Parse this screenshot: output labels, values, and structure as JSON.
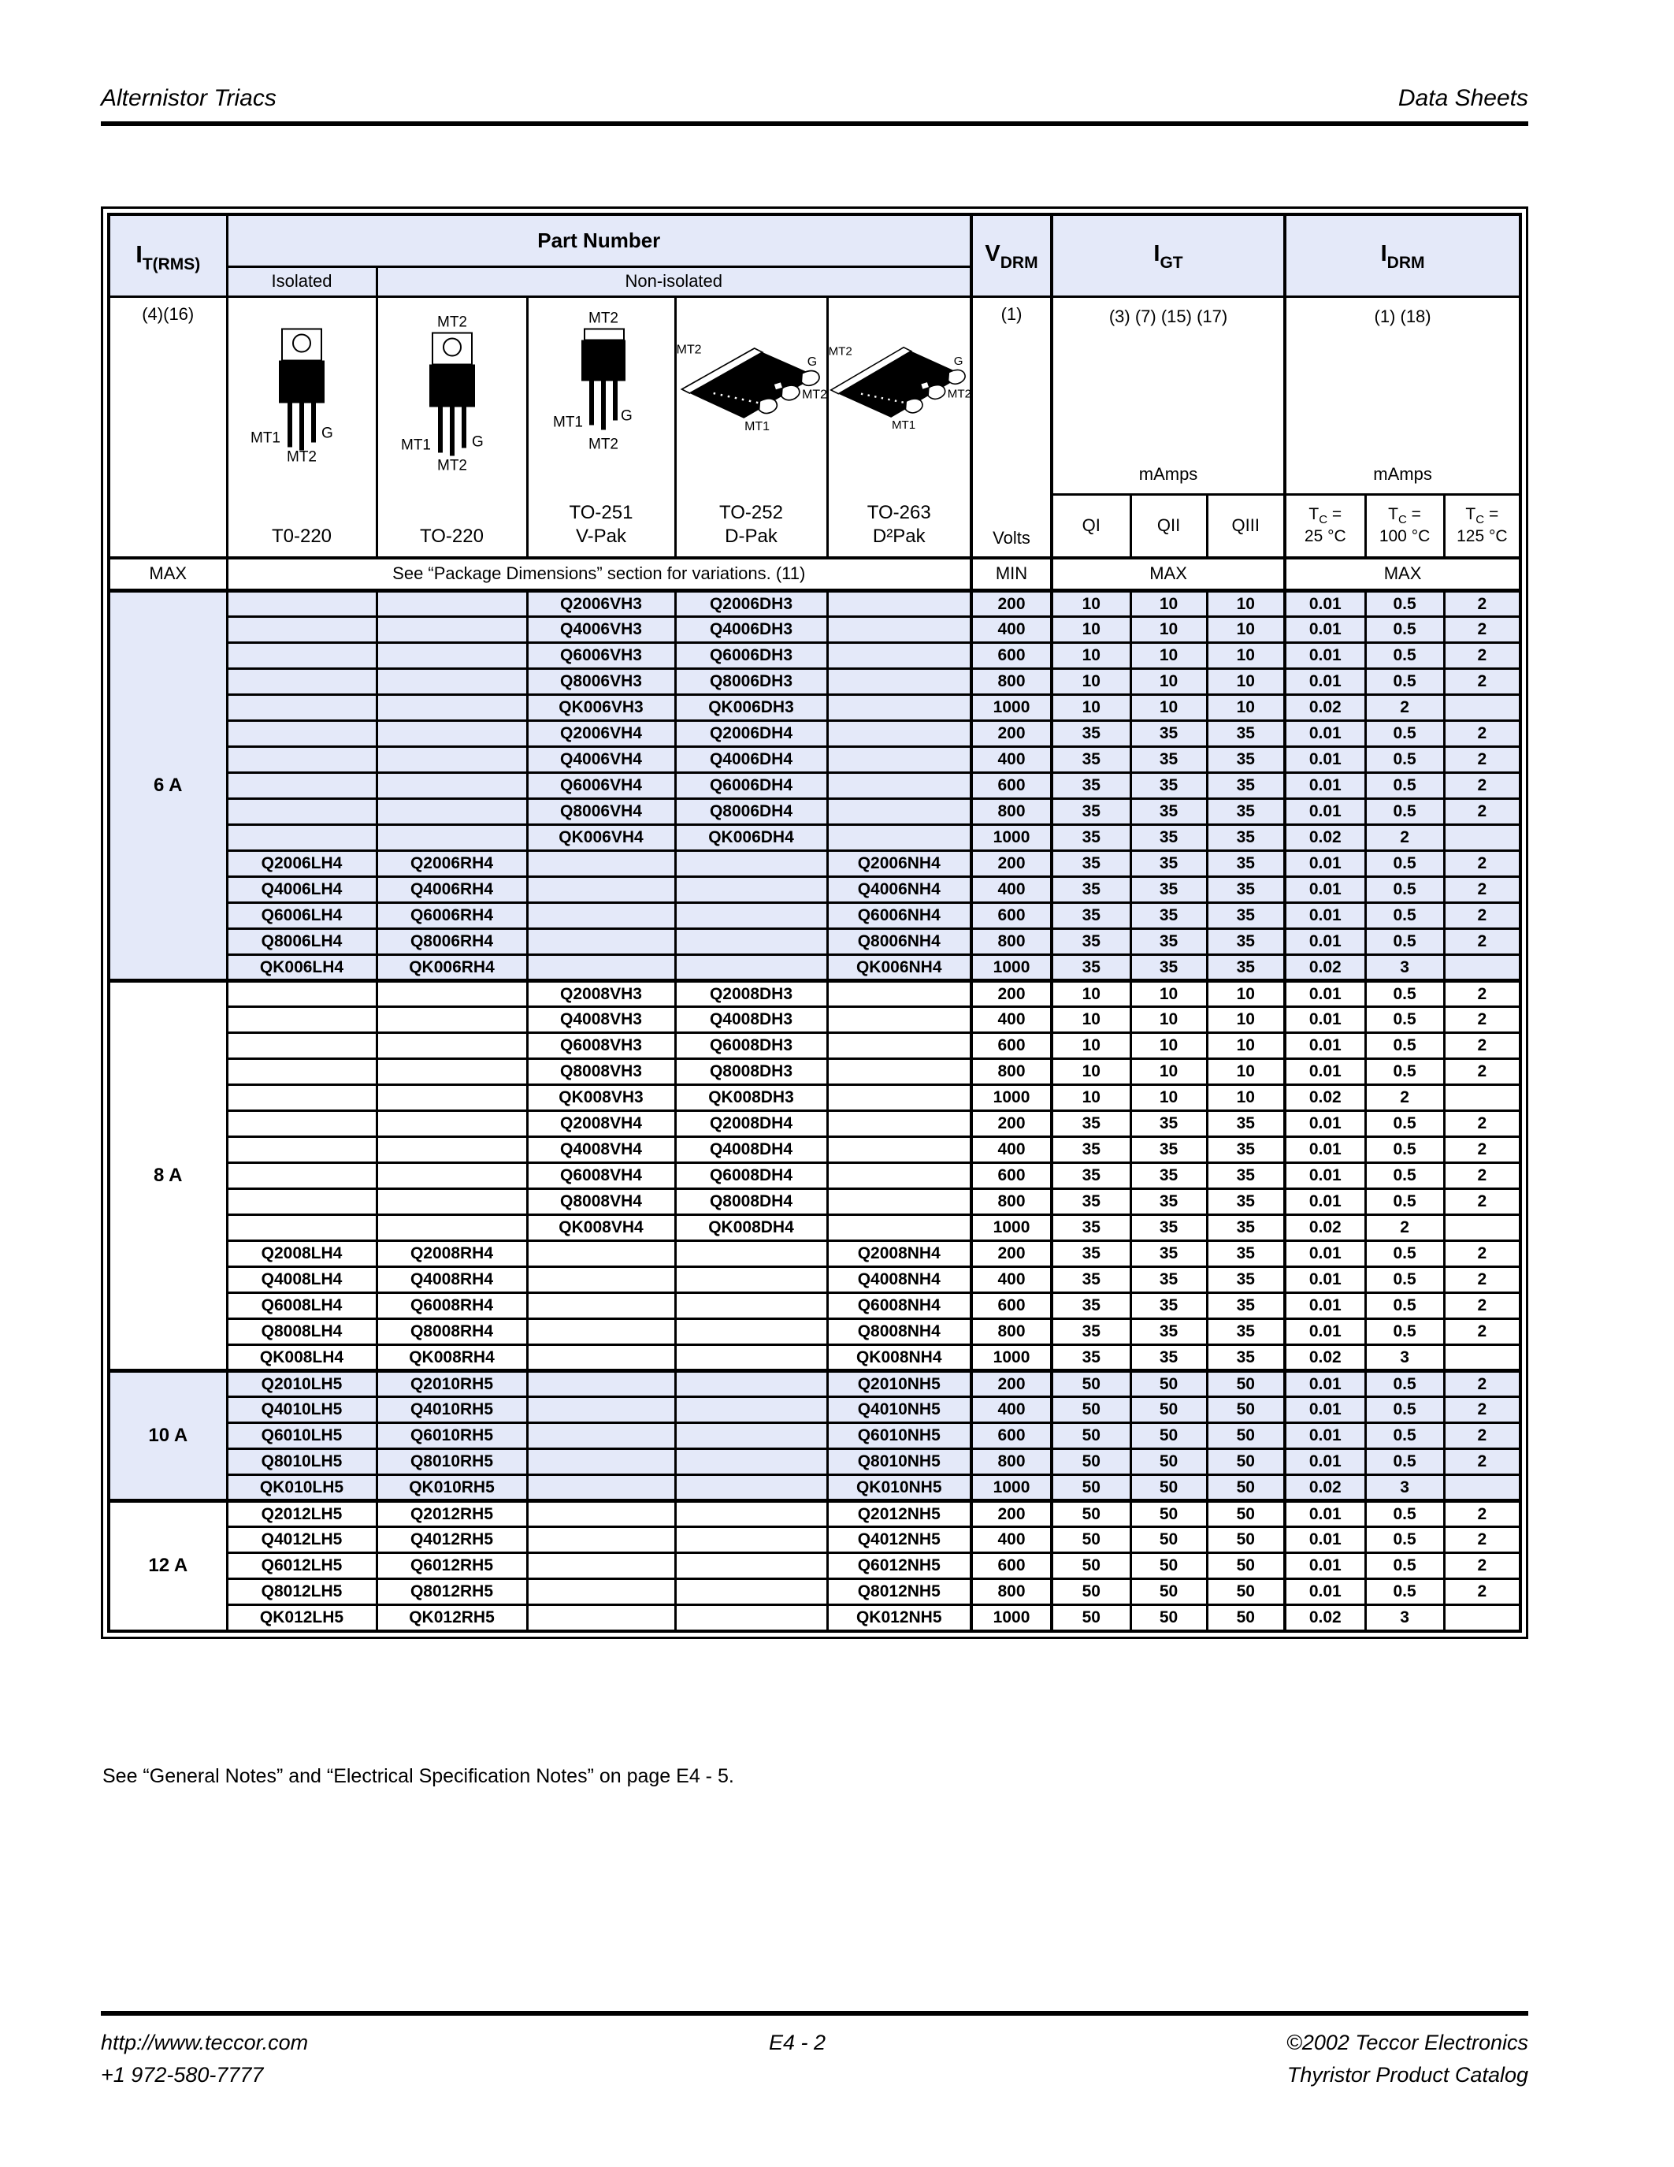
{
  "colors": {
    "section_shade": "#e4e9f9",
    "border": "#000000"
  },
  "page": {
    "header_left": "Alternistor Triacs",
    "header_right": "Data Sheets",
    "note": "See “General Notes”  and “Electrical Specification Notes” on page E4 - 5.",
    "footer": {
      "url": "http://www.teccor.com",
      "phone": "+1 972-580-7777",
      "page_number": "E4 - 2",
      "copyright": "©2002 Teccor Electronics",
      "catalog": "Thyristor Product Catalog"
    }
  },
  "table": {
    "col_headers": {
      "it_base": "I",
      "it_sub": "T(RMS)",
      "it_notes": "(4)(16)",
      "part_number": "Part Number",
      "isolated": "Isolated",
      "non_isolated": "Non-isolated",
      "vdrm_base": "V",
      "vdrm_sub": "DRM",
      "vdrm_note": "(1)",
      "volts": "Volts",
      "igt_base": "I",
      "igt_sub": "GT",
      "igt_notes": "(3) (7) (15) (17)",
      "igt_unit": "mAmps",
      "idrm_base": "I",
      "idrm_sub": "DRM",
      "idrm_notes": "(1) (18)",
      "idrm_unit": "mAmps",
      "q1": "QI",
      "q2": "QII",
      "q3": "QIII",
      "tc_base": "T",
      "tc_sub": "C",
      "tc_eq": "=",
      "tc_temps": [
        "25 °C",
        "100 °C",
        "125 °C"
      ]
    },
    "packages": [
      {
        "name": "T0-220",
        "sub": "",
        "pins": {
          "bl": "MT1",
          "bc": "MT2",
          "br": "G"
        }
      },
      {
        "name": "TO-220",
        "sub": "",
        "pins": {
          "top": "MT2",
          "bl": "MT1",
          "bc": "MT2",
          "br": "G"
        }
      },
      {
        "name": "TO-251",
        "sub": "V-Pak",
        "pins": {
          "top": "MT2",
          "bl": "MT1",
          "bc": "MT2",
          "br": "G"
        }
      },
      {
        "name": "TO-252",
        "sub": "D-Pak",
        "pins": {
          "tl": "MT2",
          "r1": "G",
          "r2": "MT2",
          "b": "MT1"
        }
      },
      {
        "name": "TO-263",
        "sub": "D²Pak",
        "pins": {
          "tl": "MT2",
          "r1": "G",
          "r2": "MT2",
          "b": "MT1"
        }
      }
    ],
    "max_row": {
      "label": "MAX",
      "span": "See “Package Dimensions” section for variations. (11)",
      "min": "MIN",
      "igt_max": "MAX",
      "idrm_max": "MAX"
    },
    "row_columns": [
      "isolated-to220",
      "to220",
      "vpak",
      "dpak",
      "d2pak",
      "volts",
      "igt-qi",
      "igt-qii",
      "igt-qiii",
      "idrm-tc25",
      "idrm-tc100",
      "idrm-tc125"
    ],
    "sections": [
      {
        "label": "6 A",
        "shaded": true,
        "rows": [
          [
            "",
            "",
            "Q2006VH3",
            "Q2006DH3",
            "",
            "200",
            "10",
            "10",
            "10",
            "0.01",
            "0.5",
            "2"
          ],
          [
            "",
            "",
            "Q4006VH3",
            "Q4006DH3",
            "",
            "400",
            "10",
            "10",
            "10",
            "0.01",
            "0.5",
            "2"
          ],
          [
            "",
            "",
            "Q6006VH3",
            "Q6006DH3",
            "",
            "600",
            "10",
            "10",
            "10",
            "0.01",
            "0.5",
            "2"
          ],
          [
            "",
            "",
            "Q8006VH3",
            "Q8006DH3",
            "",
            "800",
            "10",
            "10",
            "10",
            "0.01",
            "0.5",
            "2"
          ],
          [
            "",
            "",
            "QK006VH3",
            "QK006DH3",
            "",
            "1000",
            "10",
            "10",
            "10",
            "0.02",
            "2",
            ""
          ],
          [
            "",
            "",
            "Q2006VH4",
            "Q2006DH4",
            "",
            "200",
            "35",
            "35",
            "35",
            "0.01",
            "0.5",
            "2"
          ],
          [
            "",
            "",
            "Q4006VH4",
            "Q4006DH4",
            "",
            "400",
            "35",
            "35",
            "35",
            "0.01",
            "0.5",
            "2"
          ],
          [
            "",
            "",
            "Q6006VH4",
            "Q6006DH4",
            "",
            "600",
            "35",
            "35",
            "35",
            "0.01",
            "0.5",
            "2"
          ],
          [
            "",
            "",
            "Q8006VH4",
            "Q8006DH4",
            "",
            "800",
            "35",
            "35",
            "35",
            "0.01",
            "0.5",
            "2"
          ],
          [
            "",
            "",
            "QK006VH4",
            "QK006DH4",
            "",
            "1000",
            "35",
            "35",
            "35",
            "0.02",
            "2",
            ""
          ],
          [
            "Q2006LH4",
            "Q2006RH4",
            "",
            "",
            "Q2006NH4",
            "200",
            "35",
            "35",
            "35",
            "0.01",
            "0.5",
            "2"
          ],
          [
            "Q4006LH4",
            "Q4006RH4",
            "",
            "",
            "Q4006NH4",
            "400",
            "35",
            "35",
            "35",
            "0.01",
            "0.5",
            "2"
          ],
          [
            "Q6006LH4",
            "Q6006RH4",
            "",
            "",
            "Q6006NH4",
            "600",
            "35",
            "35",
            "35",
            "0.01",
            "0.5",
            "2"
          ],
          [
            "Q8006LH4",
            "Q8006RH4",
            "",
            "",
            "Q8006NH4",
            "800",
            "35",
            "35",
            "35",
            "0.01",
            "0.5",
            "2"
          ],
          [
            "QK006LH4",
            "QK006RH4",
            "",
            "",
            "QK006NH4",
            "1000",
            "35",
            "35",
            "35",
            "0.02",
            "3",
            ""
          ]
        ]
      },
      {
        "label": "8 A",
        "shaded": false,
        "rows": [
          [
            "",
            "",
            "Q2008VH3",
            "Q2008DH3",
            "",
            "200",
            "10",
            "10",
            "10",
            "0.01",
            "0.5",
            "2"
          ],
          [
            "",
            "",
            "Q4008VH3",
            "Q4008DH3",
            "",
            "400",
            "10",
            "10",
            "10",
            "0.01",
            "0.5",
            "2"
          ],
          [
            "",
            "",
            "Q6008VH3",
            "Q6008DH3",
            "",
            "600",
            "10",
            "10",
            "10",
            "0.01",
            "0.5",
            "2"
          ],
          [
            "",
            "",
            "Q8008VH3",
            "Q8008DH3",
            "",
            "800",
            "10",
            "10",
            "10",
            "0.01",
            "0.5",
            "2"
          ],
          [
            "",
            "",
            "QK008VH3",
            "QK008DH3",
            "",
            "1000",
            "10",
            "10",
            "10",
            "0.02",
            "2",
            ""
          ],
          [
            "",
            "",
            "Q2008VH4",
            "Q2008DH4",
            "",
            "200",
            "35",
            "35",
            "35",
            "0.01",
            "0.5",
            "2"
          ],
          [
            "",
            "",
            "Q4008VH4",
            "Q4008DH4",
            "",
            "400",
            "35",
            "35",
            "35",
            "0.01",
            "0.5",
            "2"
          ],
          [
            "",
            "",
            "Q6008VH4",
            "Q6008DH4",
            "",
            "600",
            "35",
            "35",
            "35",
            "0.01",
            "0.5",
            "2"
          ],
          [
            "",
            "",
            "Q8008VH4",
            "Q8008DH4",
            "",
            "800",
            "35",
            "35",
            "35",
            "0.01",
            "0.5",
            "2"
          ],
          [
            "",
            "",
            "QK008VH4",
            "QK008DH4",
            "",
            "1000",
            "35",
            "35",
            "35",
            "0.02",
            "2",
            ""
          ],
          [
            "Q2008LH4",
            "Q2008RH4",
            "",
            "",
            "Q2008NH4",
            "200",
            "35",
            "35",
            "35",
            "0.01",
            "0.5",
            "2"
          ],
          [
            "Q4008LH4",
            "Q4008RH4",
            "",
            "",
            "Q4008NH4",
            "400",
            "35",
            "35",
            "35",
            "0.01",
            "0.5",
            "2"
          ],
          [
            "Q6008LH4",
            "Q6008RH4",
            "",
            "",
            "Q6008NH4",
            "600",
            "35",
            "35",
            "35",
            "0.01",
            "0.5",
            "2"
          ],
          [
            "Q8008LH4",
            "Q8008RH4",
            "",
            "",
            "Q8008NH4",
            "800",
            "35",
            "35",
            "35",
            "0.01",
            "0.5",
            "2"
          ],
          [
            "QK008LH4",
            "QK008RH4",
            "",
            "",
            "QK008NH4",
            "1000",
            "35",
            "35",
            "35",
            "0.02",
            "3",
            ""
          ]
        ]
      },
      {
        "label": "10 A",
        "shaded": true,
        "rows": [
          [
            "Q2010LH5",
            "Q2010RH5",
            "",
            "",
            "Q2010NH5",
            "200",
            "50",
            "50",
            "50",
            "0.01",
            "0.5",
            "2"
          ],
          [
            "Q4010LH5",
            "Q4010RH5",
            "",
            "",
            "Q4010NH5",
            "400",
            "50",
            "50",
            "50",
            "0.01",
            "0.5",
            "2"
          ],
          [
            "Q6010LH5",
            "Q6010RH5",
            "",
            "",
            "Q6010NH5",
            "600",
            "50",
            "50",
            "50",
            "0.01",
            "0.5",
            "2"
          ],
          [
            "Q8010LH5",
            "Q8010RH5",
            "",
            "",
            "Q8010NH5",
            "800",
            "50",
            "50",
            "50",
            "0.01",
            "0.5",
            "2"
          ],
          [
            "QK010LH5",
            "QK010RH5",
            "",
            "",
            "QK010NH5",
            "1000",
            "50",
            "50",
            "50",
            "0.02",
            "3",
            ""
          ]
        ]
      },
      {
        "label": "12 A",
        "shaded": false,
        "rows": [
          [
            "Q2012LH5",
            "Q2012RH5",
            "",
            "",
            "Q2012NH5",
            "200",
            "50",
            "50",
            "50",
            "0.01",
            "0.5",
            "2"
          ],
          [
            "Q4012LH5",
            "Q4012RH5",
            "",
            "",
            "Q4012NH5",
            "400",
            "50",
            "50",
            "50",
            "0.01",
            "0.5",
            "2"
          ],
          [
            "Q6012LH5",
            "Q6012RH5",
            "",
            "",
            "Q6012NH5",
            "600",
            "50",
            "50",
            "50",
            "0.01",
            "0.5",
            "2"
          ],
          [
            "Q8012LH5",
            "Q8012RH5",
            "",
            "",
            "Q8012NH5",
            "800",
            "50",
            "50",
            "50",
            "0.01",
            "0.5",
            "2"
          ],
          [
            "QK012LH5",
            "QK012RH5",
            "",
            "",
            "QK012NH5",
            "1000",
            "50",
            "50",
            "50",
            "0.02",
            "3",
            ""
          ]
        ]
      }
    ]
  }
}
